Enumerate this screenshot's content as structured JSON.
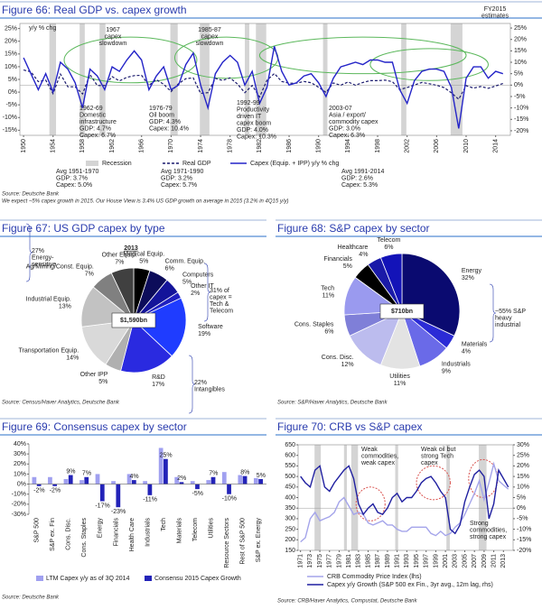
{
  "chart_data": [
    {
      "type": "line",
      "title": "Figure 66: Real GDP vs. capex growth",
      "axis_label": "y/y % chg",
      "x": [
        1950,
        1951,
        1952,
        1953,
        1954,
        1955,
        1956,
        1957,
        1958,
        1959,
        1960,
        1961,
        1962,
        1963,
        1964,
        1965,
        1966,
        1967,
        1968,
        1969,
        1970,
        1971,
        1972,
        1973,
        1974,
        1975,
        1976,
        1977,
        1978,
        1979,
        1980,
        1981,
        1982,
        1983,
        1984,
        1985,
        1986,
        1987,
        1988,
        1989,
        1990,
        1991,
        1992,
        1993,
        1994,
        1995,
        1996,
        1997,
        1998,
        1999,
        2000,
        2001,
        2002,
        2003,
        2004,
        2005,
        2006,
        2007,
        2008,
        2009,
        2010,
        2011,
        2012,
        2013,
        2014,
        2015
      ],
      "series": [
        {
          "name": "Real GDP",
          "color": "#1a1a6e",
          "line_style": "dashed",
          "axis": "y",
          "values": [
            8.7,
            8.0,
            4.1,
            4.7,
            -0.6,
            7.1,
            2.1,
            2.1,
            -0.7,
            6.9,
            2.6,
            2.6,
            6.1,
            4.4,
            5.8,
            6.5,
            6.6,
            2.7,
            4.9,
            3.1,
            0.2,
            3.3,
            5.3,
            5.6,
            -0.5,
            -0.2,
            5.4,
            4.6,
            5.6,
            3.2,
            -0.2,
            2.6,
            -1.9,
            4.6,
            7.3,
            4.2,
            3.5,
            3.5,
            4.2,
            3.7,
            1.9,
            -0.1,
            3.6,
            2.7,
            4.0,
            2.7,
            3.8,
            4.5,
            4.5,
            4.7,
            4.1,
            1.0,
            1.8,
            2.8,
            3.8,
            3.3,
            2.7,
            1.8,
            -0.3,
            -2.8,
            2.5,
            1.6,
            2.2,
            1.5,
            2.4,
            3.4
          ]
        },
        {
          "name": "Capex (Equip. + IPP) y/y % chg",
          "color": "#2424c8",
          "line_style": "solid",
          "axis": "y2",
          "values": [
            12,
            5,
            -2,
            5,
            -3,
            10,
            7,
            1,
            -10,
            7,
            4,
            -2,
            8,
            6,
            11,
            15,
            11,
            -2,
            4,
            8,
            -2,
            0,
            9,
            14,
            0,
            -10,
            5,
            10,
            13,
            10,
            0,
            6,
            -8,
            -1,
            17,
            6,
            0,
            1,
            4,
            5,
            1,
            -5,
            3,
            8,
            9,
            10,
            9,
            11,
            11,
            10,
            10,
            -2,
            -8,
            2,
            6,
            7,
            7,
            6,
            -1,
            -19,
            3,
            8,
            8,
            3,
            6,
            5
          ]
        }
      ],
      "recession_label": "Recession",
      "recessions": [
        [
          1953.5,
          1954.4
        ],
        [
          1957.6,
          1958.3
        ],
        [
          1960.3,
          1961.1
        ],
        [
          1969.9,
          1970.9
        ],
        [
          1973.9,
          1975.2
        ],
        [
          1980.0,
          1980.6
        ],
        [
          1981.5,
          1982.9
        ],
        [
          1990.6,
          1991.2
        ],
        [
          2001.2,
          2001.9
        ],
        [
          2007.9,
          2009.5
        ]
      ],
      "xlim": [
        1949.5,
        2016
      ],
      "xticks": [
        1950,
        1954,
        1958,
        1962,
        1966,
        1970,
        1974,
        1978,
        1982,
        1986,
        1990,
        1994,
        1998,
        2002,
        2006,
        2010,
        2014
      ],
      "ylim": [
        -17,
        27
      ],
      "yticks": [
        {
          "value": 25,
          "label": "25%"
        },
        {
          "value": 20,
          "label": "20%"
        },
        {
          "value": 15,
          "label": "15%"
        },
        {
          "value": 10,
          "label": "10%"
        },
        {
          "value": 5,
          "label": "5%"
        },
        {
          "value": 0,
          "label": "0%"
        },
        {
          "value": -5,
          "label": "-5%"
        },
        {
          "value": -10,
          "label": "-10%"
        },
        {
          "value": -15,
          "label": "-15%"
        }
      ],
      "y2lim": [
        -22,
        27
      ],
      "y2ticks": [
        {
          "value": 25,
          "label": "25%"
        },
        {
          "value": 20,
          "label": "20%"
        },
        {
          "value": 15,
          "label": "15%"
        },
        {
          "value": 10,
          "label": "10%"
        },
        {
          "value": 5,
          "label": "5%"
        },
        {
          "value": 0,
          "label": "0%"
        },
        {
          "value": -5,
          "label": "-5%"
        },
        {
          "value": -10,
          "label": "-10%"
        },
        {
          "value": -15,
          "label": "-15%"
        },
        {
          "value": -20,
          "label": "-20%"
        }
      ],
      "annotations": [
        [
          "1967",
          "capex",
          "slowdown"
        ],
        [
          "1985-87",
          "capex",
          "slowdown"
        ],
        [
          "FY2015",
          "estimates"
        ],
        [
          "1962-69",
          "Domestic",
          "infrastructure",
          "GDP: 4.7%",
          "Capex: 6.7%"
        ],
        [
          "1976-79",
          "Oil boom",
          "GDP: 4.3%",
          "Capex: 10.4%"
        ],
        [
          "1992-99",
          "Productivity",
          "driven IT",
          "capex boom",
          "GDP: 4.0%",
          "Capex: 10.3%"
        ],
        [
          "2003-07",
          "Asia / export/",
          "commodity capex",
          "GDP: 3.0%",
          "Capex: 6.3%"
        ],
        [
          "Avg 1951-1970",
          "GDP: 3.7%",
          "Capex: 5.0%"
        ],
        [
          "Avg 1971-1990",
          "GDP: 3.2%",
          "Capex: 5.7%"
        ],
        [
          "Avg 1991-2014",
          "GDP: 2.6%",
          "Capex: 5.3%"
        ]
      ],
      "source": [
        "Source: Deutsche Bank",
        "We expect ~5% capex growth in 2015. Our House View is 3.4% US GDP growth on average in 2015 (3.2% in 4Q15 y/y)"
      ]
    },
    {
      "type": "pie",
      "title": "Figure 67: US GDP capex by type",
      "subtitle": "2013",
      "center_label": "$1,590bn",
      "categories": [
        "Medical Equip.",
        "Comm. Equip.",
        "Computers",
        "Other IT",
        "Software",
        "R&D",
        "Other IPP",
        "Transportation Equip.",
        "Industrial Equip.",
        "Ag/Mining/Const. Equip.",
        "Other Equip."
      ],
      "values": [
        5,
        6,
        5,
        2,
        19,
        17,
        5,
        14,
        13,
        7,
        7
      ],
      "value_labels": [
        "5%",
        "6%",
        "5%",
        "2%",
        "19%",
        "17%",
        "5%",
        "14%",
        "13%",
        "7%",
        "7%"
      ],
      "colors": [
        "#000000",
        "#0c0c5a",
        "#14149a",
        "#2020c0",
        "#1f3cff",
        "#2a2ae0",
        "#b0b0b0",
        "#d9d9d9",
        "#c2c2c2",
        "#808080",
        "#404040"
      ],
      "annotations": [
        [
          "27%",
          "Energy-",
          "sensitive"
        ],
        [
          "31% of",
          "capex =",
          "Tech &",
          "Telecom"
        ],
        [
          "22%",
          "Intangibles"
        ]
      ],
      "source": [
        "Source: Census/Haver Analytics, Deutsche Bank"
      ]
    },
    {
      "type": "pie",
      "title": "Figure 68: S&P capex by sector",
      "center_label": "$710bn",
      "categories": [
        "Energy",
        "Materials",
        "Industrials",
        "Utilities",
        "Cons. Disc.",
        "Cons. Staples",
        "Tech",
        "Financials",
        "Healthcare",
        "Telecom"
      ],
      "values": [
        32,
        4,
        9,
        11,
        12,
        6,
        11,
        5,
        4,
        6
      ],
      "value_labels": [
        "32%",
        "4%",
        "9%",
        "11%",
        "12%",
        "6%",
        "11%",
        "5%",
        "4%",
        "6%"
      ],
      "colors": [
        "#0a0a70",
        "#2b2bd6",
        "#6a6ae8",
        "#e3e3e3",
        "#bcbcee",
        "#7f7fd8",
        "#9a9aef",
        "#000000",
        "#1a1aa8",
        "#1313b8"
      ],
      "annotations": [
        [
          "~55% S&P",
          "heavy",
          "industrial"
        ]
      ],
      "source": [
        "Source: S&P/Haver Analytics, Deutsche Bank"
      ]
    },
    {
      "type": "bar",
      "title": "Figure 69: Consensus capex by sector",
      "categories": [
        "S&P 500",
        "S&P ex. Fin",
        "Cons. Disc.",
        "Cons. Staples",
        "Energy",
        "Financials",
        "Health Care",
        "Industrials",
        "Tech",
        "Materials",
        "Telecom",
        "Utilities",
        "Resource Sectors",
        "Rest of S&P 500",
        "S&P ex. Energy"
      ],
      "series": [
        {
          "name": "LTM Capex y/y as of 3Q 2014",
          "color": "#a0a0f0",
          "values": [
            7,
            7,
            5,
            4,
            10,
            3,
            10,
            3,
            36,
            7,
            3,
            4,
            12,
            9,
            6
          ]
        },
        {
          "name": "Consensu 2015 Capex Growth",
          "color": "#2323b8",
          "values": [
            -2,
            -2,
            9,
            7,
            -17,
            -23,
            4,
            -11,
            25,
            2,
            -5,
            7,
            -10,
            8,
            5
          ],
          "value_labels": [
            "-2%",
            "-2%",
            "9%",
            "7%",
            "-17%",
            "-23%",
            "4%",
            "-11%",
            "25%",
            "2%",
            "-5%",
            "7%",
            "-10%",
            "8%",
            "5%"
          ]
        }
      ],
      "ylim": [
        -30,
        40
      ],
      "yticks": [
        {
          "value": 40,
          "label": "40%"
        },
        {
          "value": 30,
          "label": "30%"
        },
        {
          "value": 20,
          "label": "20%"
        },
        {
          "value": 10,
          "label": "10%"
        },
        {
          "value": 0,
          "label": "0%"
        },
        {
          "value": -10,
          "label": "-10%"
        },
        {
          "value": -20,
          "label": "-20%"
        },
        {
          "value": -30,
          "label": "-30%"
        }
      ],
      "source": [
        "Source: Deutsche Bank"
      ]
    },
    {
      "type": "line",
      "title": "Figure 70: CRB vs S&P capex",
      "x": [
        1971,
        1972,
        1973,
        1974,
        1975,
        1976,
        1977,
        1978,
        1979,
        1980,
        1981,
        1982,
        1983,
        1984,
        1985,
        1986,
        1987,
        1988,
        1989,
        1990,
        1991,
        1992,
        1993,
        1994,
        1995,
        1996,
        1997,
        1998,
        1999,
        2000,
        2001,
        2002,
        2003,
        2004,
        2005,
        2006,
        2007,
        2008,
        2009,
        2010,
        2011,
        2012,
        2013,
        2014
      ],
      "series": [
        {
          "name": "CRB Commodity Price Index (lhs)",
          "color": "#a4a4ea",
          "line_style": "solid",
          "axis": "y",
          "values": [
            190,
            210,
            300,
            330,
            290,
            300,
            310,
            330,
            380,
            400,
            360,
            320,
            330,
            320,
            280,
            270,
            280,
            290,
            270,
            270,
            250,
            240,
            240,
            260,
            260,
            260,
            260,
            230,
            220,
            240,
            220,
            230,
            260,
            280,
            320,
            370,
            420,
            480,
            390,
            470,
            560,
            480,
            460,
            440
          ]
        },
        {
          "name": "Capex y/y Growth (S&P 500 ex Fin., 3yr avg., 12m lag, rhs)",
          "color": "#1f1fa0",
          "line_style": "solid",
          "axis": "y2",
          "values": [
            15,
            12,
            10,
            18,
            20,
            10,
            8,
            12,
            15,
            18,
            20,
            14,
            2,
            -3,
            0,
            2,
            -2,
            -3,
            0,
            5,
            7,
            3,
            5,
            5,
            8,
            12,
            14,
            15,
            12,
            8,
            5,
            -10,
            -12,
            -8,
            3,
            10,
            16,
            18,
            15,
            -5,
            2,
            18,
            14,
            10
          ]
        }
      ],
      "recessions": [
        [
          1973.9,
          1975.2
        ],
        [
          1980.0,
          1980.6
        ],
        [
          1981.5,
          1982.9
        ],
        [
          1990.6,
          1991.2
        ],
        [
          2001.2,
          2001.9
        ],
        [
          2007.9,
          2009.5
        ]
      ],
      "xlim": [
        1970.5,
        2015
      ],
      "xticks": [
        1971,
        1973,
        1975,
        1977,
        1979,
        1981,
        1983,
        1985,
        1987,
        1989,
        1991,
        1993,
        1995,
        1997,
        1999,
        2001,
        2003,
        2005,
        2007,
        2009,
        2011,
        2013
      ],
      "ylim": [
        150,
        650
      ],
      "yticks": [
        650,
        600,
        550,
        500,
        450,
        400,
        350,
        300,
        250,
        200,
        150
      ],
      "y2lim": [
        -20,
        30
      ],
      "y2ticks": [
        {
          "value": 30,
          "label": "30%"
        },
        {
          "value": 25,
          "label": "25%"
        },
        {
          "value": 20,
          "label": "20%"
        },
        {
          "value": 15,
          "label": "15%"
        },
        {
          "value": 10,
          "label": "10%"
        },
        {
          "value": 5,
          "label": "5%"
        },
        {
          "value": 0,
          "label": "0%"
        },
        {
          "value": -5,
          "label": "-5%"
        },
        {
          "value": -10,
          "label": "-10%"
        },
        {
          "value": -15,
          "label": "-15%"
        },
        {
          "value": -20,
          "label": "-20%"
        }
      ],
      "annotations": [
        [
          "Weak",
          "commodities,",
          "weak capex"
        ],
        [
          "Weak oil but",
          "strong Tech",
          "capex"
        ],
        [
          "Strong",
          "commodities,",
          "strong capex"
        ]
      ],
      "source": [
        "Source: CRB/Haver Analytics, Compustat, Deutsche Bank"
      ]
    }
  ]
}
